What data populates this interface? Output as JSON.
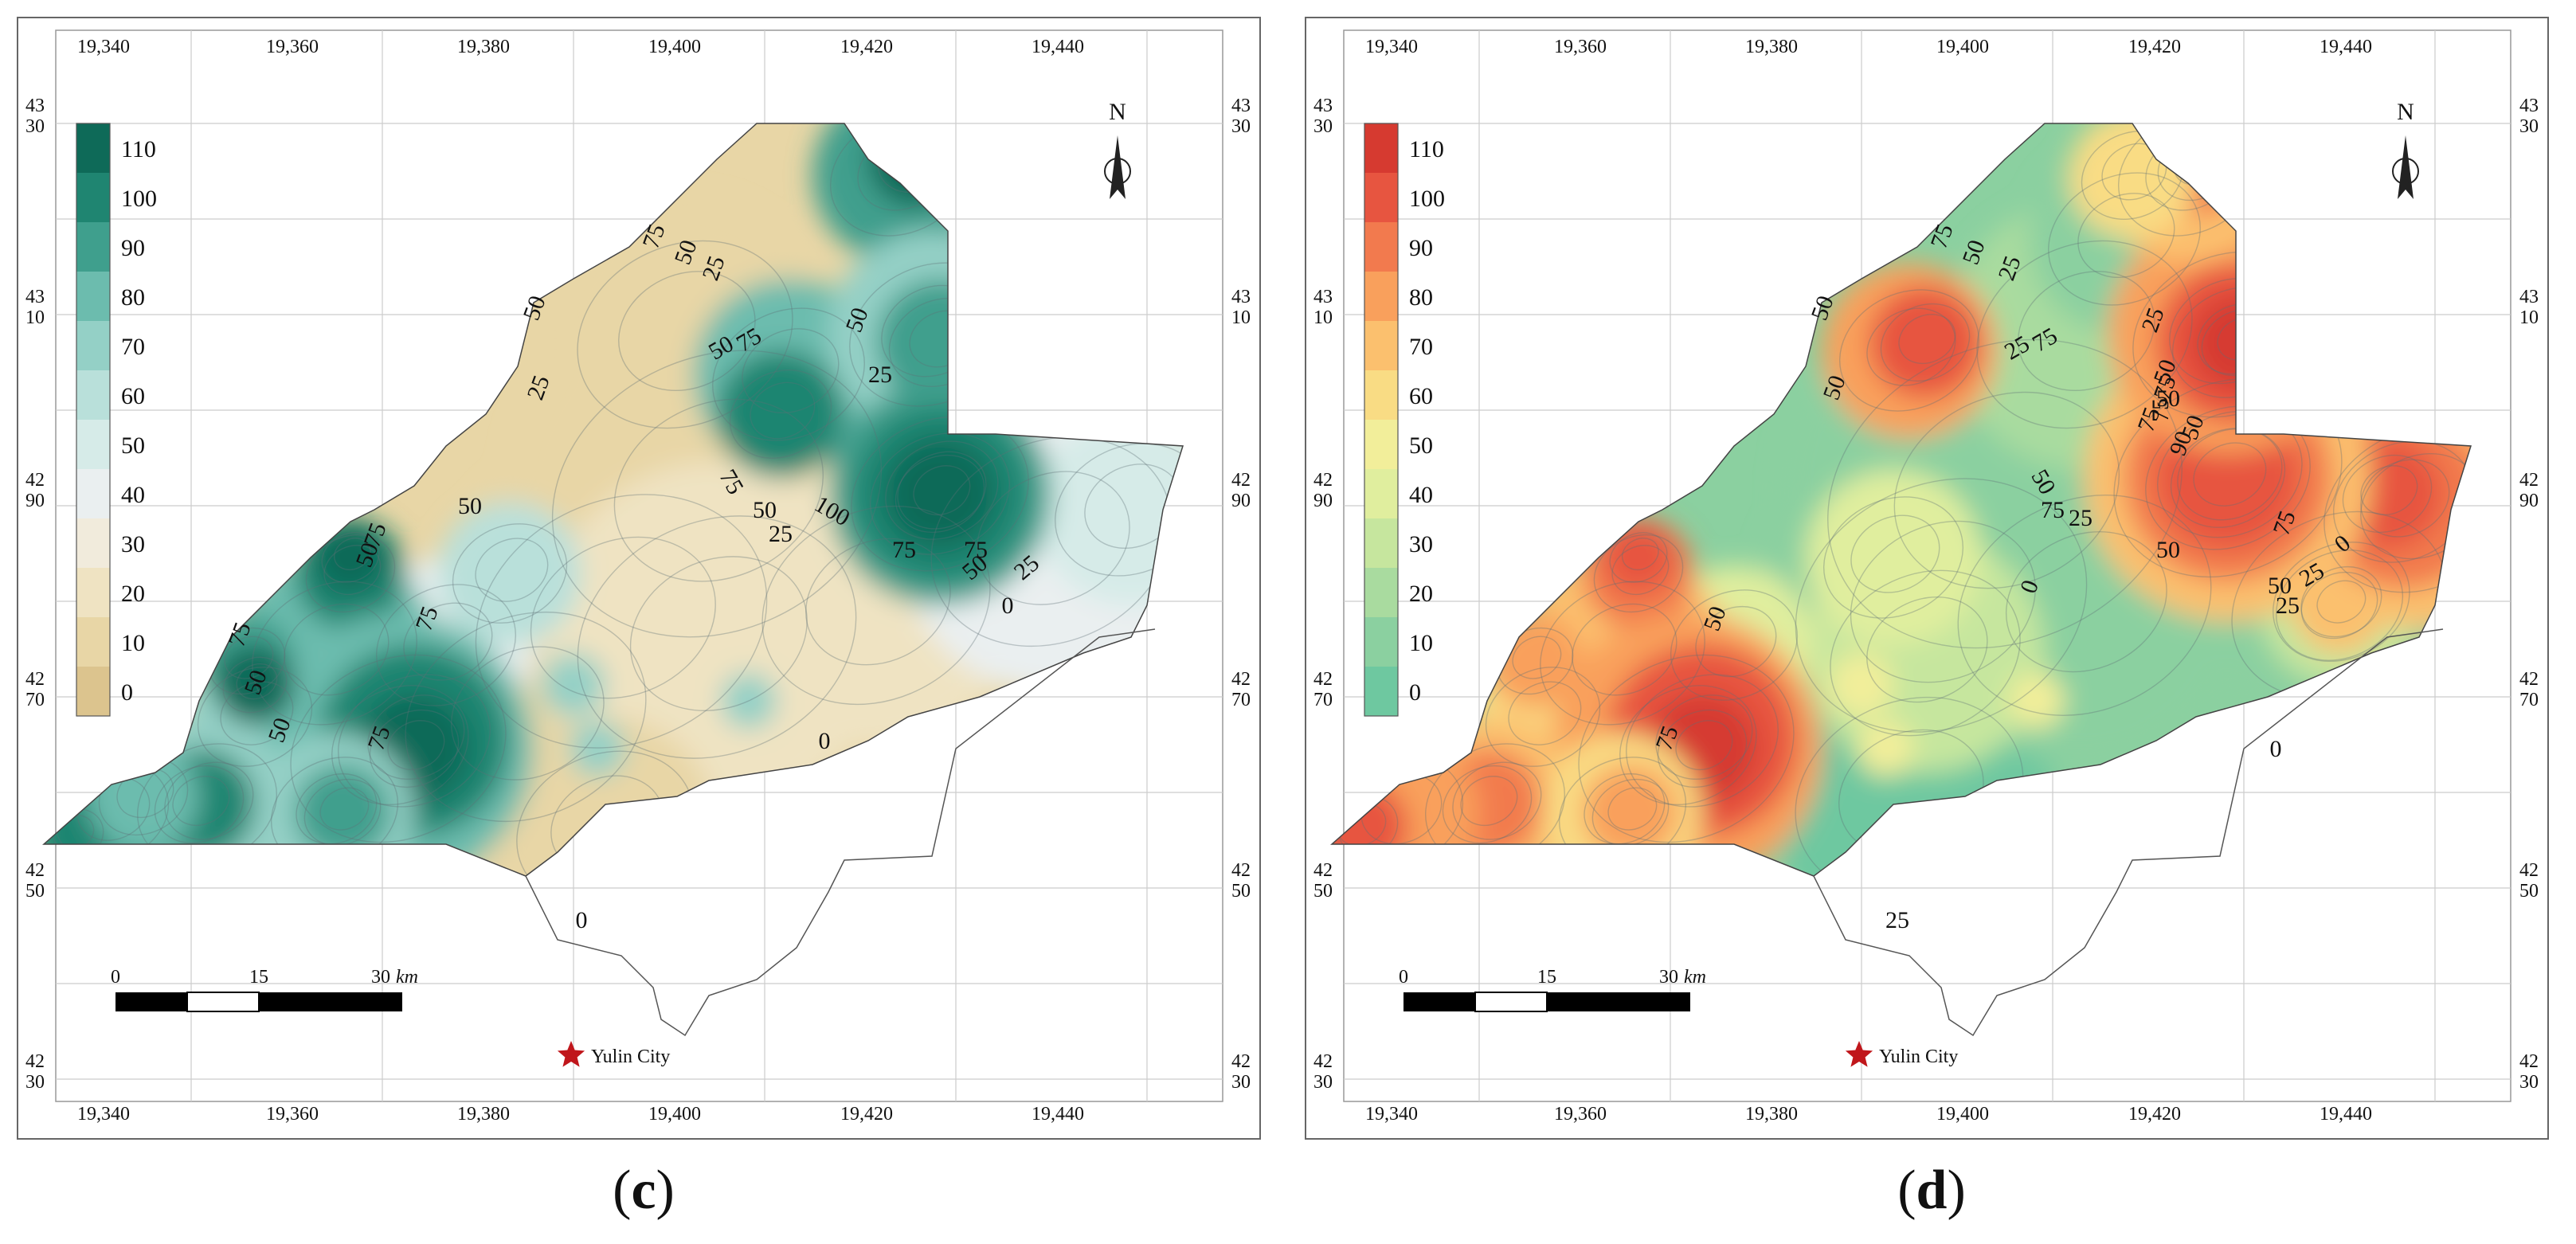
{
  "panels": [
    {
      "id": "c",
      "caption_letter": "c",
      "palette": [
        "#dcc48e",
        "#e8d6a6",
        "#efe3c2",
        "#f1ebdc",
        "#eaeff0",
        "#d6ebe8",
        "#b9e0da",
        "#94d0c6",
        "#6cbcae",
        "#3f9f8d",
        "#1f8571",
        "#0e6a58"
      ],
      "contour_labels": [
        "75",
        "50",
        "25",
        "50",
        "25",
        "75",
        "50",
        "50",
        "25",
        "75",
        "50",
        "75",
        "25",
        "100",
        "75",
        "50",
        "25",
        "0",
        "75",
        "50",
        "75",
        "50",
        "75",
        "50",
        "75",
        "50",
        "0",
        "0"
      ]
    },
    {
      "id": "d",
      "caption_letter": "d",
      "palette": [
        "#6ec8a0",
        "#8bd0a0",
        "#a9db9f",
        "#c6e69e",
        "#e0ee9e",
        "#f2ee9a",
        "#f9dc84",
        "#fbc06e",
        "#f9a05c",
        "#f27a4e",
        "#e75540",
        "#d63a30"
      ],
      "contour_labels": [
        "75",
        "50",
        "25",
        "50",
        "50",
        "25",
        "75",
        "25",
        "50",
        "75",
        "50",
        "75",
        "50",
        "25",
        "0",
        "25",
        "0",
        "75",
        "50",
        "75",
        "50",
        "75",
        "50",
        "25",
        "0",
        "90",
        "50",
        "75",
        "25"
      ]
    }
  ],
  "legend": {
    "ticks": [
      "110",
      "100",
      "90",
      "80",
      "70",
      "60",
      "50",
      "40",
      "30",
      "20",
      "10",
      "0"
    ]
  },
  "x_axis": {
    "ticks": [
      "19,340",
      "19,360",
      "19,380",
      "19,400",
      "19,420",
      "19,440"
    ]
  },
  "y_axis": {
    "ticks": [
      {
        "top": "43",
        "bottom": "30"
      },
      {
        "top": "43",
        "bottom": "10"
      },
      {
        "top": "42",
        "bottom": "90"
      },
      {
        "top": "42",
        "bottom": "70"
      },
      {
        "top": "42",
        "bottom": "50"
      },
      {
        "top": "42",
        "bottom": "30"
      }
    ]
  },
  "north_label": "N",
  "scale_bar": {
    "labels": [
      "0",
      "15",
      "30"
    ],
    "unit": "km"
  },
  "city_label": "Yulin City",
  "colors": {
    "city_star": "#c0161b",
    "frame": "#666666",
    "grid": "#cccccc"
  }
}
